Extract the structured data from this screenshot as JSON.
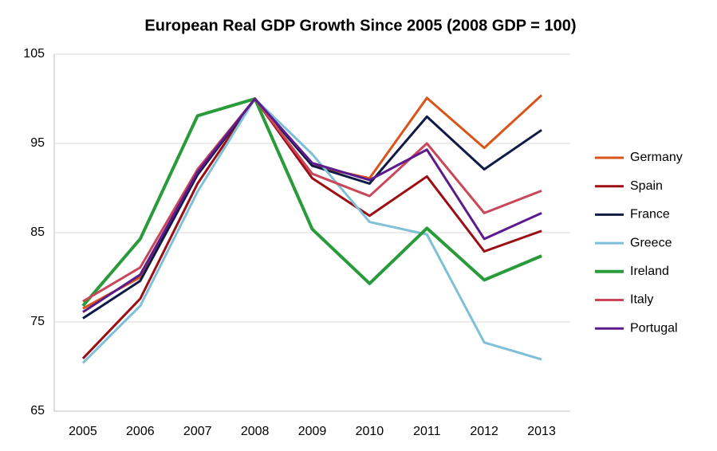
{
  "chart_data": {
    "type": "line",
    "title": "European Real GDP Growth Since 2005 (2008 GDP = 100)",
    "categories": [
      "2005",
      "2006",
      "2007",
      "2008",
      "2009",
      "2010",
      "2011",
      "2012",
      "2013"
    ],
    "ylim": [
      65,
      105
    ],
    "yticks": [
      65,
      75,
      85,
      95,
      105
    ],
    "grid": true,
    "legend": "right",
    "series": [
      {
        "name": "Germany",
        "color": "#d9541a",
        "values": [
          76.5,
          80.0,
          91.5,
          100,
          92.5,
          91.1,
          100.1,
          94.5,
          100.4
        ]
      },
      {
        "name": "Spain",
        "color": "#9b0e14",
        "values": [
          70.9,
          77.6,
          90.5,
          100,
          91.1,
          86.9,
          91.3,
          82.9,
          85.2
        ]
      },
      {
        "name": "France",
        "color": "#0f1b45",
        "values": [
          75.4,
          79.6,
          91.5,
          100,
          92.5,
          90.5,
          98.0,
          92.1,
          96.5
        ]
      },
      {
        "name": "Greece",
        "color": "#7fc0d8",
        "values": [
          70.4,
          76.8,
          89.6,
          100,
          93.8,
          86.2,
          84.8,
          72.7,
          70.8
        ]
      },
      {
        "name": "Ireland",
        "color": "#2a9b3a",
        "values": [
          76.8,
          84.3,
          98.1,
          100,
          85.4,
          79.3,
          85.5,
          79.7,
          82.4
        ]
      },
      {
        "name": "Italy",
        "color": "#c8485a",
        "values": [
          77.3,
          81.1,
          92.1,
          100,
          91.6,
          89.1,
          95.0,
          87.2,
          89.7
        ]
      },
      {
        "name": "Portugal",
        "color": "#5c1a8c",
        "values": [
          76.1,
          80.3,
          91.8,
          100,
          92.8,
          90.9,
          94.3,
          84.3,
          87.2
        ]
      }
    ]
  }
}
